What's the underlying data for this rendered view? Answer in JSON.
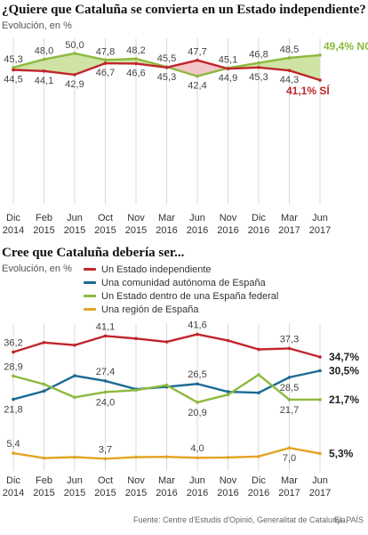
{
  "chart_data": [
    {
      "type": "line",
      "title": "¿Quiere que Cataluña se convierta en un Estado independiente?",
      "subtitle": "Evolución, en %",
      "categories": [
        "Dic 2014",
        "Feb 2015",
        "Jun 2015",
        "Oct 2015",
        "Nov 2015",
        "Mar 2016",
        "Jun 2016",
        "Nov 2016",
        "Dic 2016",
        "Mar 2017",
        "Jun 2017"
      ],
      "ylim": [
        0,
        55
      ],
      "series": [
        {
          "name": "NO",
          "color": "#8db93e",
          "values": [
            45.3,
            48.0,
            50.0,
            47.8,
            48.2,
            45.5,
            42.4,
            45.1,
            46.8,
            48.5,
            49.4
          ],
          "end_label": "49,4%"
        },
        {
          "name": "SÍ",
          "color": "#c0262c",
          "values": [
            44.5,
            44.1,
            42.9,
            46.7,
            46.6,
            45.3,
            47.7,
            44.9,
            45.3,
            44.3,
            41.1
          ],
          "end_label": "41,1%"
        }
      ],
      "value_labels": {
        "top": [
          "45,3",
          "48,0",
          "50,0",
          "47,8",
          "48,2",
          "45,5",
          "47,7",
          "45,1",
          "46,8",
          "48,5",
          ""
        ],
        "bottom": [
          "44,5",
          "44,1",
          "42,9",
          "46,7",
          "46,6",
          "45,3",
          "42,4",
          "44,9",
          "45,3",
          "44,3",
          ""
        ]
      }
    },
    {
      "type": "line",
      "title": "Cree que Cataluña debería ser...",
      "subtitle": "Evolución, en %",
      "categories": [
        "Dic 2014",
        "Feb 2015",
        "Jun 2015",
        "Oct 2015",
        "Nov 2015",
        "Mar 2016",
        "Jun 2016",
        "Nov 2016",
        "Dic 2016",
        "Mar 2017",
        "Jun 2017"
      ],
      "ylim": [
        0,
        45
      ],
      "series": [
        {
          "name": "Un Estado independiente",
          "color": "#c0262c",
          "values": [
            36.2,
            39.1,
            38.3,
            41.1,
            40.3,
            39.3,
            41.6,
            39.7,
            37.0,
            37.3,
            34.7
          ],
          "end_label": "34,7%"
        },
        {
          "name": "Una comunidad autónoma de España",
          "color": "#1b6a94",
          "values": [
            21.8,
            24.3,
            29.0,
            27.4,
            24.9,
            25.6,
            26.5,
            24.1,
            23.8,
            28.5,
            30.5
          ],
          "end_label": "30,5%"
        },
        {
          "name": "Un Estado dentro de una España federal",
          "color": "#8db93e",
          "values": [
            28.9,
            26.4,
            22.4,
            24.0,
            24.6,
            26.1,
            20.9,
            23.2,
            29.3,
            21.7,
            21.7
          ],
          "end_label": "21,7%"
        },
        {
          "name": "Una región de España",
          "color": "#e2a526",
          "values": [
            5.4,
            3.9,
            4.2,
            3.7,
            4.2,
            4.3,
            4.0,
            4.1,
            4.4,
            7.0,
            5.3
          ],
          "end_label": "5,3%"
        }
      ],
      "point_labels": [
        {
          "series": 0,
          "index": 0,
          "text": "36,2",
          "pos": "above"
        },
        {
          "series": 0,
          "index": 3,
          "text": "41,1",
          "pos": "above"
        },
        {
          "series": 0,
          "index": 6,
          "text": "41,6",
          "pos": "above"
        },
        {
          "series": 0,
          "index": 9,
          "text": "37,3",
          "pos": "above"
        },
        {
          "series": 2,
          "index": 0,
          "text": "28,9",
          "pos": "above"
        },
        {
          "series": 1,
          "index": 0,
          "text": "21,8",
          "pos": "below"
        },
        {
          "series": 1,
          "index": 3,
          "text": "27,4",
          "pos": "above"
        },
        {
          "series": 2,
          "index": 3,
          "text": "24,0",
          "pos": "below"
        },
        {
          "series": 1,
          "index": 6,
          "text": "26,5",
          "pos": "above"
        },
        {
          "series": 2,
          "index": 6,
          "text": "20,9",
          "pos": "below"
        },
        {
          "series": 1,
          "index": 9,
          "text": "28,5",
          "pos": "below"
        },
        {
          "series": 2,
          "index": 9,
          "text": "21,7",
          "pos": "below"
        },
        {
          "series": 3,
          "index": 0,
          "text": "5,4",
          "pos": "above"
        },
        {
          "series": 3,
          "index": 3,
          "text": "3,7",
          "pos": "above"
        },
        {
          "series": 3,
          "index": 6,
          "text": "4,0",
          "pos": "above"
        },
        {
          "series": 3,
          "index": 9,
          "text": "7,0",
          "pos": "below"
        }
      ]
    }
  ],
  "footer": {
    "source": "Fuente: Centre d'Estudis d'Opinió, Generalitat de Catalunya.",
    "brand": "EL PAÍS"
  }
}
